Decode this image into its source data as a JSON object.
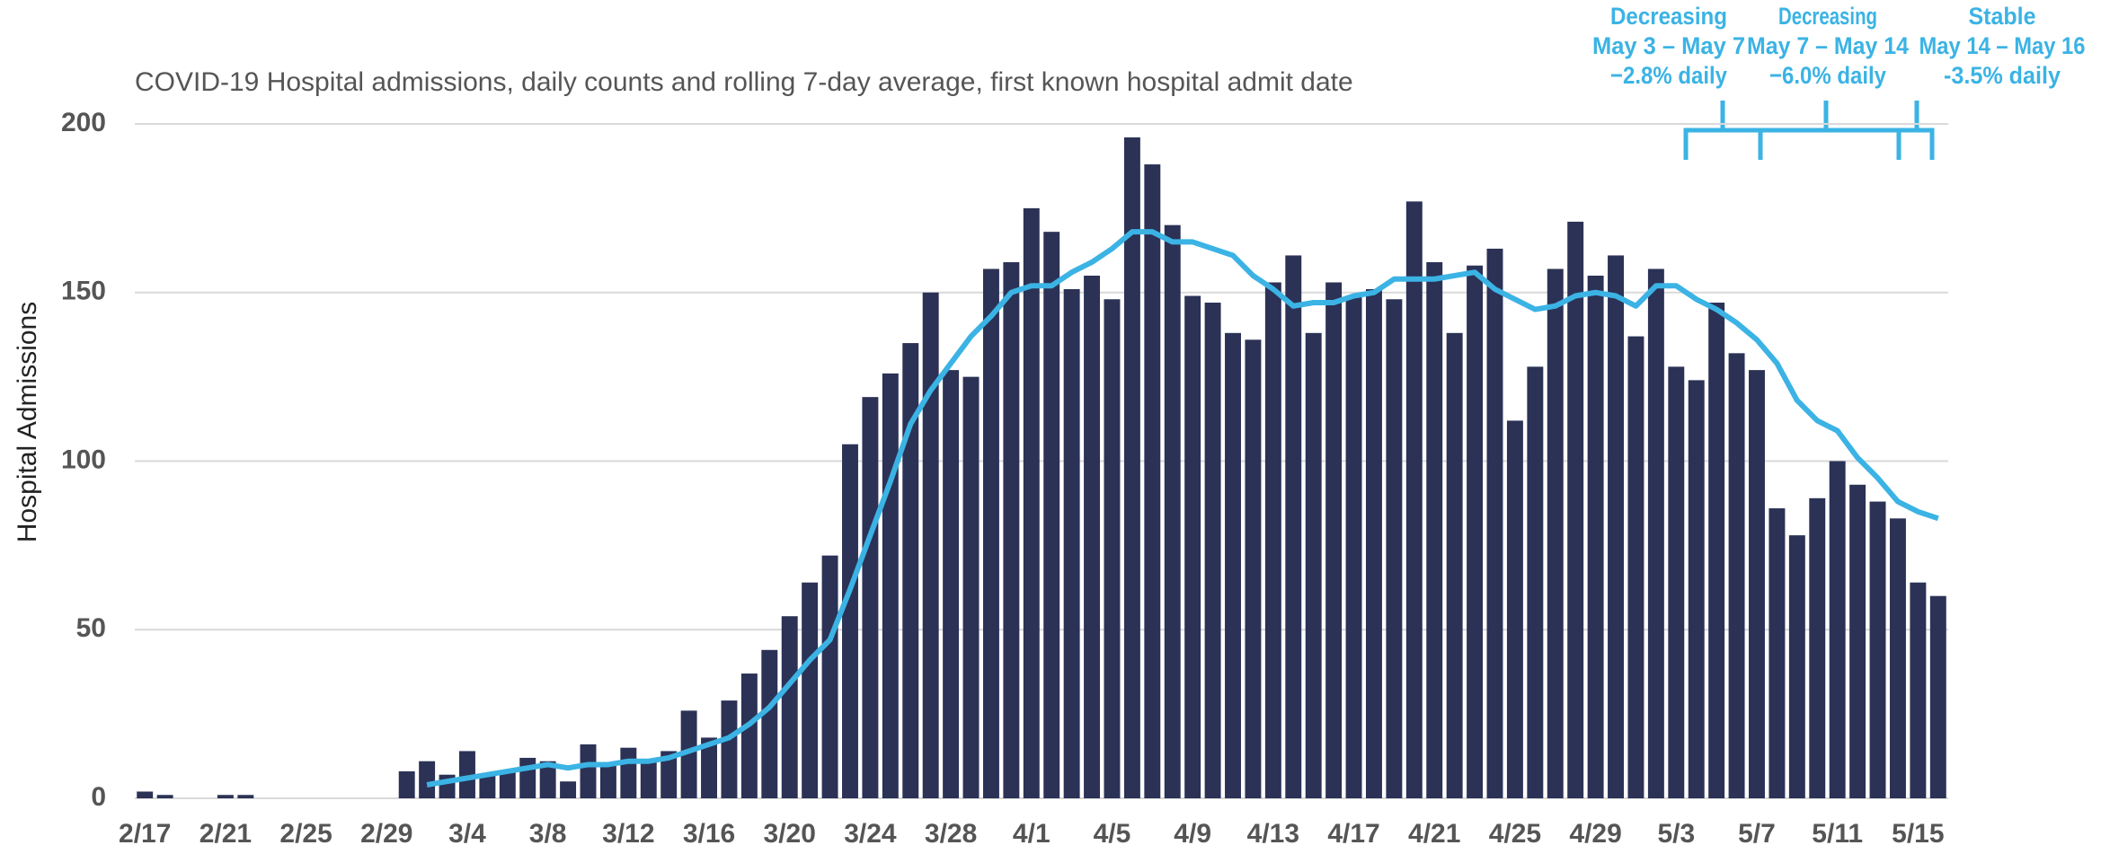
{
  "chart_data": {
    "type": "bar",
    "title": "COVID-19 Hospital admissions, daily counts and rolling 7-day average, first known hospital admit date",
    "y_label": "Hospital Admissions",
    "categories": [
      "2/17",
      null,
      null,
      null,
      "2/21",
      null,
      null,
      null,
      "2/25",
      null,
      null,
      null,
      "2/29",
      null,
      null,
      null,
      "3/4",
      null,
      null,
      null,
      "3/8",
      null,
      null,
      null,
      "3/12",
      null,
      null,
      null,
      "3/16",
      null,
      null,
      null,
      "3/20",
      null,
      null,
      null,
      "3/24",
      null,
      null,
      null,
      "3/28",
      null,
      null,
      null,
      "4/1",
      null,
      null,
      null,
      "4/5",
      null,
      null,
      null,
      "4/9",
      null,
      null,
      null,
      "4/13",
      null,
      null,
      null,
      "4/17",
      null,
      null,
      null,
      "4/21",
      null,
      null,
      null,
      "4/25",
      null,
      null,
      null,
      "4/29",
      null,
      null,
      null,
      "5/3",
      null,
      null,
      null,
      "5/7",
      null,
      null,
      null,
      "5/11",
      null,
      null,
      null,
      "5/15",
      null
    ],
    "series": [
      {
        "name": "Daily admissions",
        "type": "bar",
        "color": "#2b3256",
        "values": [
          2,
          1,
          0,
          0,
          1,
          1,
          0,
          0,
          0,
          0,
          0,
          0,
          0,
          8,
          11,
          7,
          14,
          7,
          8,
          12,
          11,
          5,
          16,
          10,
          15,
          11,
          14,
          26,
          18,
          29,
          37,
          44,
          54,
          64,
          72,
          105,
          119,
          126,
          135,
          150,
          127,
          125,
          157,
          159,
          175,
          168,
          151,
          155,
          148,
          196,
          188,
          170,
          149,
          147,
          138,
          136,
          153,
          161,
          138,
          153,
          149,
          151,
          148,
          177,
          159,
          138,
          158,
          163,
          112,
          128,
          157,
          171,
          155,
          161,
          137,
          157,
          128,
          124,
          147,
          132,
          127,
          86,
          78,
          89,
          100,
          93,
          88,
          83,
          64,
          60
        ]
      },
      {
        "name": "Rolling 7-day average",
        "type": "line",
        "color": "#3bb3e4",
        "values": [
          null,
          null,
          null,
          null,
          null,
          null,
          null,
          null,
          null,
          null,
          null,
          null,
          null,
          null,
          4,
          5,
          6,
          7,
          8,
          9,
          10,
          9,
          10,
          10,
          11,
          11,
          12,
          14,
          16,
          18,
          22,
          27,
          34,
          41,
          47,
          62,
          78,
          94,
          111,
          121,
          129,
          137,
          143,
          150,
          152,
          152,
          156,
          159,
          163,
          168,
          168,
          165,
          165,
          163,
          161,
          155,
          151,
          146,
          147,
          147,
          149,
          150,
          154,
          154,
          154,
          155,
          156,
          151,
          148,
          145,
          146,
          149,
          150,
          149,
          146,
          152,
          152,
          148,
          145,
          141,
          136,
          129,
          118,
          112,
          109,
          101,
          95,
          88,
          85,
          83
        ]
      }
    ],
    "ylim": [
      0,
      200
    ],
    "yticks": [
      0,
      50,
      100,
      150,
      200
    ],
    "grid": true,
    "annotations": [
      {
        "lines": [
          "Decreasing",
          "May 3 – May 7",
          "−2.8% daily"
        ]
      },
      {
        "lines": [
          "Decreasing",
          "May 7 – May 14",
          "−6.0% daily"
        ]
      },
      {
        "lines": [
          "Stable",
          "May 14 – May 16",
          "-3.5% daily"
        ]
      }
    ]
  }
}
